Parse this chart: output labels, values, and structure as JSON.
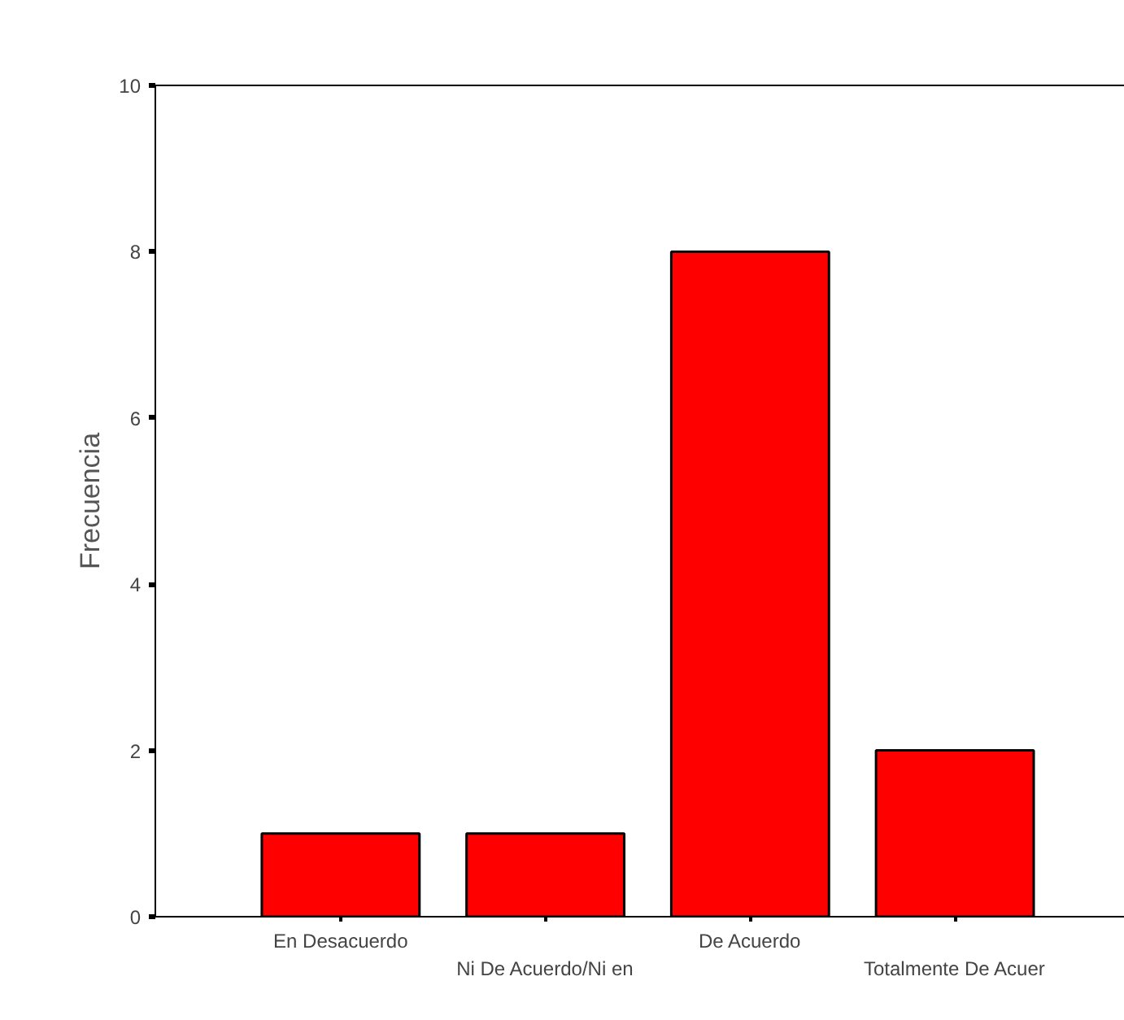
{
  "chart_data": {
    "type": "bar",
    "ylabel": "Frecuencia",
    "categories": [
      "En Desacuerdo",
      "Ni De Acuerdo/Ni en",
      "De Acuerdo",
      "Totalmente De Acuer"
    ],
    "values": [
      1,
      1,
      8,
      2
    ],
    "color": "#ff0000",
    "ylim": [
      0,
      10
    ],
    "yticks": [
      0,
      2,
      4,
      6,
      8,
      10
    ],
    "grid": false
  }
}
